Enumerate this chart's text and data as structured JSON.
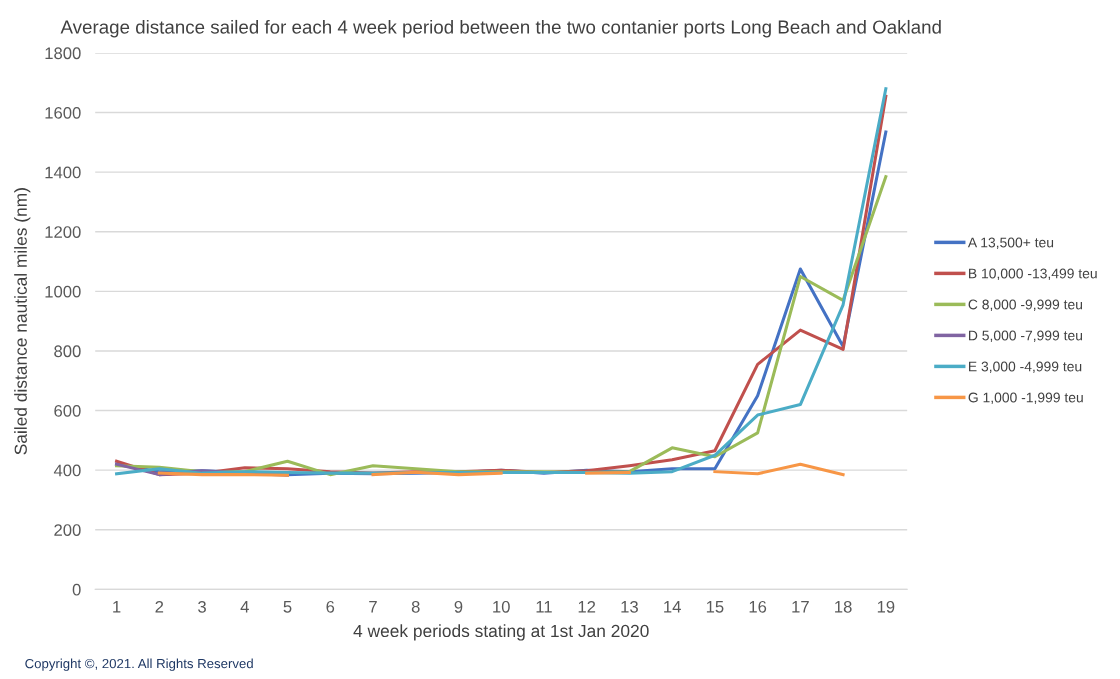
{
  "chart_data": {
    "type": "line",
    "title": "Average distance sailed for each 4 week period between the two contanier ports Long Beach and Oakland",
    "xlabel": "4 week periods stating at 1st Jan 2020",
    "ylabel": "Sailed distance nautical miles (nm)",
    "categories": [
      "1",
      "2",
      "3",
      "4",
      "5",
      "6",
      "7",
      "8",
      "9",
      "10",
      "11",
      "12",
      "13",
      "14",
      "15",
      "16",
      "17",
      "18",
      "19"
    ],
    "series": [
      {
        "name": "A 13,500+ teu",
        "color": "#4472c4",
        "values": [
          420,
          395,
          398,
          392,
          385,
          390,
          388,
          390,
          392,
          400,
          390,
          400,
          395,
          405,
          405,
          650,
          1075,
          815,
          1535
        ]
      },
      {
        "name": "B 10,000 -13,499 teu",
        "color": "#c0504d",
        "values": [
          430,
          385,
          390,
          408,
          405,
          395,
          390,
          395,
          395,
          400,
          392,
          398,
          415,
          435,
          465,
          755,
          870,
          805,
          1655
        ]
      },
      {
        "name": "C 8,000 -9,999 teu",
        "color": "#9bbb59",
        "values": [
          415,
          410,
          395,
          395,
          430,
          385,
          415,
          405,
          395,
          395,
          395,
          392,
          395,
          475,
          445,
          525,
          1050,
          970,
          1385
        ]
      },
      {
        "name": "D 5,000 -7,999 teu",
        "color": "#8064a2",
        "values": [
          420,
          385,
          398,
          390,
          383,
          null,
          null,
          null,
          null,
          null,
          null,
          null,
          null,
          null,
          null,
          null,
          null,
          null,
          null
        ]
      },
      {
        "name": "E 3,000 -4,999 teu",
        "color": "#4bacc6",
        "values": [
          388,
          405,
          390,
          395,
          392,
          390,
          390,
          392,
          392,
          392,
          392,
          392,
          390,
          395,
          450,
          585,
          620,
          955,
          1680
        ]
      },
      {
        "name": "G 1,000 -1,999 teu",
        "color": "#f79646",
        "values": [
          null,
          390,
          385,
          385,
          383,
          null,
          385,
          393,
          385,
          390,
          null,
          390,
          392,
          null,
          395,
          388,
          420,
          385,
          null
        ]
      }
    ],
    "ylim": [
      0,
      1800
    ],
    "yticks": [
      0,
      200,
      400,
      600,
      800,
      1000,
      1200,
      1400,
      1600,
      1800
    ],
    "grid": "y",
    "legend": "right",
    "marker": "none",
    "line_style": "solid",
    "annotations": [
      "Copyright ©, 2021. All Rights Reserved"
    ]
  }
}
